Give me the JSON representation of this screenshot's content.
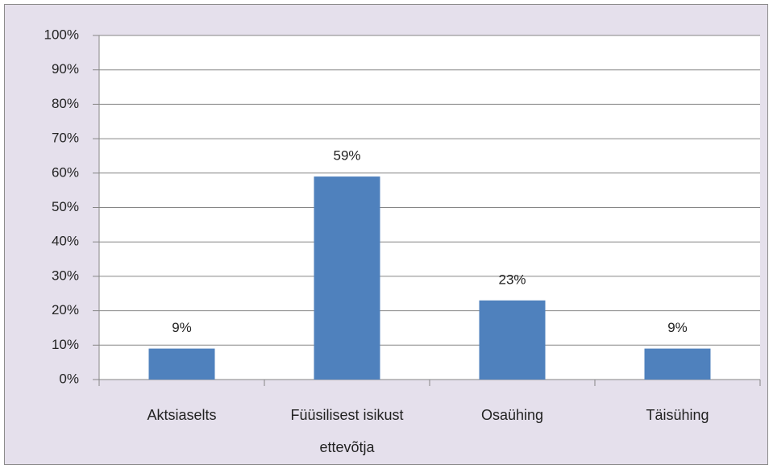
{
  "chart_data": {
    "type": "bar",
    "categories": [
      "Aktsiaselts",
      "Füüsilisest isikust ettevõtja",
      "Osaühing",
      "Täisühing"
    ],
    "values": [
      9,
      59,
      23,
      9
    ],
    "value_labels": [
      "9%",
      "59%",
      "23%",
      "9%"
    ],
    "color": "#4f81bd",
    "ylim": [
      0,
      100
    ],
    "yticks": [
      {
        "value": 0,
        "label": "0%"
      },
      {
        "value": 10,
        "label": "10%"
      },
      {
        "value": 20,
        "label": "20%"
      },
      {
        "value": 30,
        "label": "30%"
      },
      {
        "value": 40,
        "label": "40%"
      },
      {
        "value": 50,
        "label": "50%"
      },
      {
        "value": 60,
        "label": "60%"
      },
      {
        "value": 70,
        "label": "70%"
      },
      {
        "value": 80,
        "label": "80%"
      },
      {
        "value": 90,
        "label": "90%"
      },
      {
        "value": 100,
        "label": "100%"
      }
    ],
    "grid": true
  }
}
